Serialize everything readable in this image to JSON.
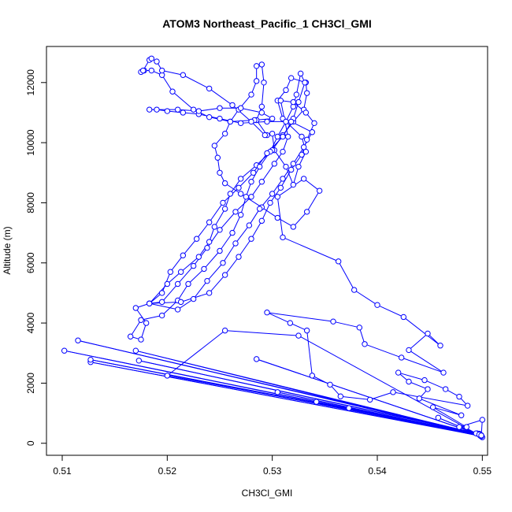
{
  "chart_data": {
    "type": "scatter",
    "title": "ATOM3 Northeast_Pacific_1 CH3Cl_GMI",
    "xlabel": "CH3Cl_GMI",
    "ylabel": "Altitude (m)",
    "xlim": [
      0.5085,
      0.5505
    ],
    "ylim": [
      -400,
      13200
    ],
    "x_ticks": [
      0.51,
      0.52,
      0.53,
      0.54,
      0.55
    ],
    "x_tick_labels": [
      "0.51",
      "0.52",
      "0.53",
      "0.54",
      "0.55"
    ],
    "y_ticks": [
      0,
      2000,
      4000,
      6000,
      8000,
      10000,
      12000
    ],
    "y_tick_labels": [
      "0",
      "2000",
      "4000",
      "6000",
      "8000",
      "10000",
      "12000"
    ],
    "grid": false,
    "legend": "none",
    "series_color": "#0000ff",
    "series": [
      {
        "marker": "open-circle",
        "connected": true,
        "points": [
          [
            0.55,
            200
          ],
          [
            0.5495,
            330
          ],
          [
            0.5497,
            300
          ],
          [
            0.5499,
            240
          ],
          [
            0.5127,
            2700
          ],
          [
            0.5499,
            250
          ],
          [
            0.5102,
            3080
          ],
          [
            0.5498,
            280
          ],
          [
            0.5115,
            3420
          ],
          [
            0.5497,
            310
          ],
          [
            0.5127,
            2780
          ],
          [
            0.5498,
            260
          ],
          [
            0.517,
            3080
          ],
          [
            0.5496,
            310
          ],
          [
            0.5173,
            2750
          ],
          [
            0.5497,
            320
          ],
          [
            0.52,
            2250
          ],
          [
            0.5255,
            3750
          ],
          [
            0.5325,
            3580
          ],
          [
            0.5494,
            330
          ],
          [
            0.5285,
            2800
          ],
          [
            0.5499,
            270
          ],
          [
            0.5305,
            1700
          ],
          [
            0.5499,
            230
          ],
          [
            0.5342,
            1380
          ],
          [
            0.5498,
            250
          ],
          [
            0.5373,
            1170
          ],
          [
            0.5497,
            290
          ],
          [
            0.5458,
            850
          ],
          [
            0.5499,
            260
          ],
          [
            0.55,
            780
          ],
          [
            0.5478,
            540
          ],
          [
            0.5485,
            540
          ],
          [
            0.5453,
            1200
          ],
          [
            0.548,
            930
          ],
          [
            0.544,
            1490
          ],
          [
            0.5448,
            1800
          ],
          [
            0.543,
            2050
          ],
          [
            0.542,
            2350
          ],
          [
            0.5445,
            2100
          ],
          [
            0.5465,
            1800
          ],
          [
            0.5478,
            1550
          ],
          [
            0.5486,
            1250
          ],
          [
            0.5415,
            1700
          ],
          [
            0.5393,
            1450
          ],
          [
            0.5365,
            1560
          ],
          [
            0.5355,
            1950
          ],
          [
            0.5338,
            2250
          ],
          [
            0.5333,
            3750
          ],
          [
            0.5317,
            4000
          ],
          [
            0.5295,
            4350
          ],
          [
            0.5358,
            4050
          ],
          [
            0.5383,
            3850
          ],
          [
            0.5388,
            3300
          ],
          [
            0.5423,
            2850
          ],
          [
            0.5463,
            2350
          ],
          [
            0.543,
            3100
          ],
          [
            0.5448,
            3650
          ],
          [
            0.546,
            3250
          ],
          [
            0.5425,
            4200
          ],
          [
            0.54,
            4600
          ],
          [
            0.5378,
            5100
          ],
          [
            0.5363,
            6050
          ],
          [
            0.531,
            6850
          ],
          [
            0.5305,
            8200
          ],
          [
            0.533,
            8800
          ],
          [
            0.5345,
            8400
          ],
          [
            0.5333,
            7700
          ],
          [
            0.532,
            7200
          ],
          [
            0.5305,
            7500
          ],
          [
            0.529,
            7850
          ],
          [
            0.527,
            8300
          ],
          [
            0.5255,
            8650
          ],
          [
            0.525,
            9000
          ],
          [
            0.5248,
            9500
          ],
          [
            0.5245,
            9900
          ],
          [
            0.5255,
            10300
          ],
          [
            0.526,
            10700
          ],
          [
            0.5268,
            11100
          ],
          [
            0.528,
            11600
          ],
          [
            0.5285,
            12050
          ],
          [
            0.5285,
            12550
          ],
          [
            0.529,
            12600
          ],
          [
            0.5292,
            12000
          ],
          [
            0.529,
            11200
          ],
          [
            0.5285,
            10750
          ],
          [
            0.5295,
            10250
          ],
          [
            0.53,
            10300
          ],
          [
            0.5302,
            9750
          ],
          [
            0.5313,
            9200
          ],
          [
            0.532,
            8600
          ],
          [
            0.5325,
            9200
          ],
          [
            0.5332,
            9700
          ],
          [
            0.5328,
            10200
          ],
          [
            0.531,
            10800
          ],
          [
            0.5305,
            11400
          ],
          [
            0.5313,
            11750
          ],
          [
            0.5318,
            12150
          ],
          [
            0.5332,
            12000
          ],
          [
            0.5333,
            11650
          ],
          [
            0.533,
            11100
          ],
          [
            0.532,
            10700
          ],
          [
            0.531,
            10250
          ],
          [
            0.53,
            9750
          ],
          [
            0.5285,
            9250
          ],
          [
            0.527,
            8800
          ],
          [
            0.526,
            8300
          ],
          [
            0.5255,
            7800
          ],
          [
            0.5245,
            7200
          ],
          [
            0.524,
            6700
          ],
          [
            0.523,
            6200
          ],
          [
            0.5213,
            5700
          ],
          [
            0.52,
            5300
          ],
          [
            0.5183,
            4650
          ],
          [
            0.517,
            4500
          ],
          [
            0.518,
            4000
          ],
          [
            0.5175,
            3450
          ],
          [
            0.5165,
            3550
          ],
          [
            0.5175,
            4100
          ],
          [
            0.5195,
            4250
          ],
          [
            0.521,
            4750
          ],
          [
            0.522,
            5300
          ],
          [
            0.5235,
            5800
          ],
          [
            0.525,
            6400
          ],
          [
            0.5262,
            7000
          ],
          [
            0.527,
            7600
          ],
          [
            0.5275,
            8200
          ],
          [
            0.528,
            8700
          ],
          [
            0.5288,
            9200
          ],
          [
            0.5298,
            9700
          ],
          [
            0.5305,
            10200
          ],
          [
            0.5313,
            10700
          ],
          [
            0.532,
            11200
          ],
          [
            0.5323,
            11600
          ],
          [
            0.5327,
            12300
          ],
          [
            0.5331,
            12000
          ],
          [
            0.5325,
            11350
          ],
          [
            0.532,
            10800
          ],
          [
            0.531,
            10200
          ],
          [
            0.5295,
            9650
          ],
          [
            0.5282,
            9000
          ],
          [
            0.5268,
            8500
          ],
          [
            0.5253,
            8000
          ],
          [
            0.524,
            7350
          ],
          [
            0.5228,
            6800
          ],
          [
            0.5215,
            6250
          ],
          [
            0.5203,
            5700
          ],
          [
            0.5195,
            5000
          ],
          [
            0.5183,
            4650
          ],
          [
            0.5213,
            4700
          ],
          [
            0.524,
            5000
          ],
          [
            0.5255,
            5600
          ],
          [
            0.5268,
            6200
          ],
          [
            0.528,
            6800
          ],
          [
            0.529,
            7400
          ],
          [
            0.5298,
            8000
          ],
          [
            0.5308,
            8500
          ],
          [
            0.5318,
            9100
          ],
          [
            0.5328,
            9600
          ],
          [
            0.5333,
            10100
          ],
          [
            0.534,
            10650
          ],
          [
            0.5332,
            11000
          ],
          [
            0.532,
            11350
          ],
          [
            0.5308,
            11400
          ],
          [
            0.5315,
            10200
          ],
          [
            0.531,
            9700
          ],
          [
            0.5302,
            9300
          ],
          [
            0.529,
            8700
          ],
          [
            0.528,
            8200
          ],
          [
            0.5265,
            7700
          ],
          [
            0.525,
            7100
          ],
          [
            0.5238,
            6500
          ],
          [
            0.5225,
            5900
          ],
          [
            0.521,
            5300
          ],
          [
            0.5195,
            4700
          ],
          [
            0.5183,
            4650
          ],
          [
            0.521,
            4450
          ],
          [
            0.5225,
            4800
          ],
          [
            0.5238,
            5400
          ],
          [
            0.5253,
            6000
          ],
          [
            0.5265,
            6650
          ],
          [
            0.5278,
            7250
          ],
          [
            0.5288,
            7800
          ],
          [
            0.53,
            8300
          ],
          [
            0.531,
            8800
          ],
          [
            0.532,
            9300
          ],
          [
            0.533,
            9850
          ],
          [
            0.5338,
            10350
          ],
          [
            0.5318,
            10700
          ],
          [
            0.5295,
            10700
          ],
          [
            0.527,
            10650
          ],
          [
            0.525,
            10800
          ],
          [
            0.523,
            10950
          ],
          [
            0.5215,
            11000
          ],
          [
            0.52,
            11050
          ],
          [
            0.519,
            11100
          ],
          [
            0.5183,
            11100
          ],
          [
            0.521,
            11100
          ],
          [
            0.523,
            11050
          ],
          [
            0.525,
            11150
          ],
          [
            0.527,
            11150
          ],
          [
            0.529,
            11000
          ],
          [
            0.53,
            10800
          ],
          [
            0.5283,
            10750
          ],
          [
            0.526,
            10700
          ],
          [
            0.524,
            10850
          ],
          [
            0.5225,
            11100
          ],
          [
            0.5205,
            11700
          ],
          [
            0.5195,
            12250
          ],
          [
            0.5185,
            12400
          ],
          [
            0.5178,
            12400
          ],
          [
            0.5175,
            12350
          ],
          [
            0.5177,
            12400
          ],
          [
            0.5183,
            12750
          ],
          [
            0.5185,
            12800
          ],
          [
            0.519,
            12700
          ],
          [
            0.5195,
            12400
          ],
          [
            0.5215,
            12250
          ],
          [
            0.524,
            11800
          ],
          [
            0.5262,
            11250
          ],
          [
            0.528,
            10700
          ],
          [
            0.5293,
            10250
          ]
        ]
      }
    ]
  }
}
